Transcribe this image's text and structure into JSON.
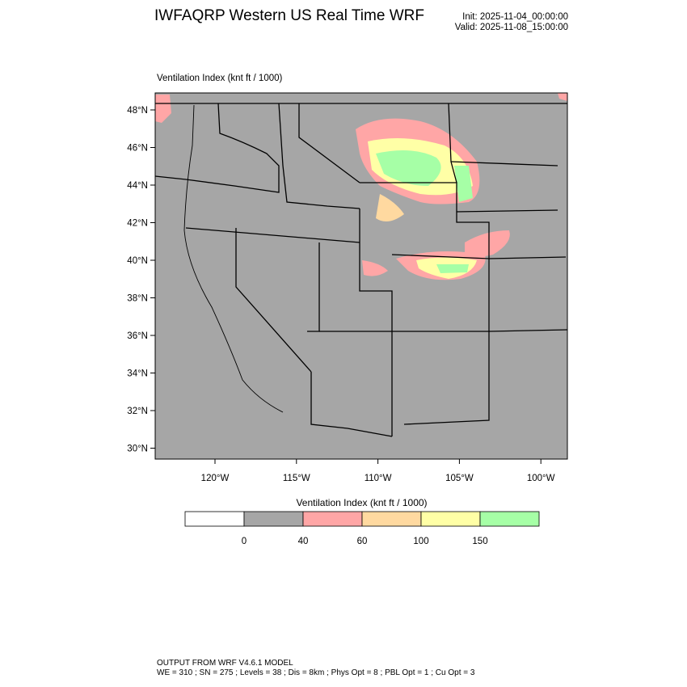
{
  "header": {
    "title": "IWFAQRP Western US Real Time WRF",
    "init": "Init: 2025-11-04_00:00:00",
    "valid": "Valid: 2025-11-08_15:00:00"
  },
  "field": {
    "name": "Ventilation Index",
    "units": "(knt ft / 1000)",
    "label": "Ventilation Index   (knt ft / 1000)"
  },
  "map": {
    "lat_ticks": [
      "48°N",
      "46°N",
      "44°N",
      "42°N",
      "40°N",
      "38°N",
      "36°N",
      "34°N",
      "32°N",
      "30°N"
    ],
    "lon_ticks": [
      "120°W",
      "115°W",
      "110°W",
      "105°W",
      "100°W"
    ],
    "background_color": "#a6a6a6"
  },
  "colorbar": {
    "title": "Ventilation Index   (knt ft / 1000)",
    "colors": [
      "#ffffff",
      "#a6a6a6",
      "#ffa6a6",
      "#ffd9a0",
      "#ffffa6",
      "#a6ffa6"
    ],
    "labels": [
      "0",
      "40",
      "60",
      "100",
      "150"
    ]
  },
  "footer": {
    "line1": "OUTPUT FROM WRF V4.6.1 MODEL",
    "line2": "WE = 310 ; SN = 275 ; Levels = 38 ; Dis = 8km ; Phys Opt = 8 ; PBL Opt = 1 ; Cu Opt = 3"
  }
}
